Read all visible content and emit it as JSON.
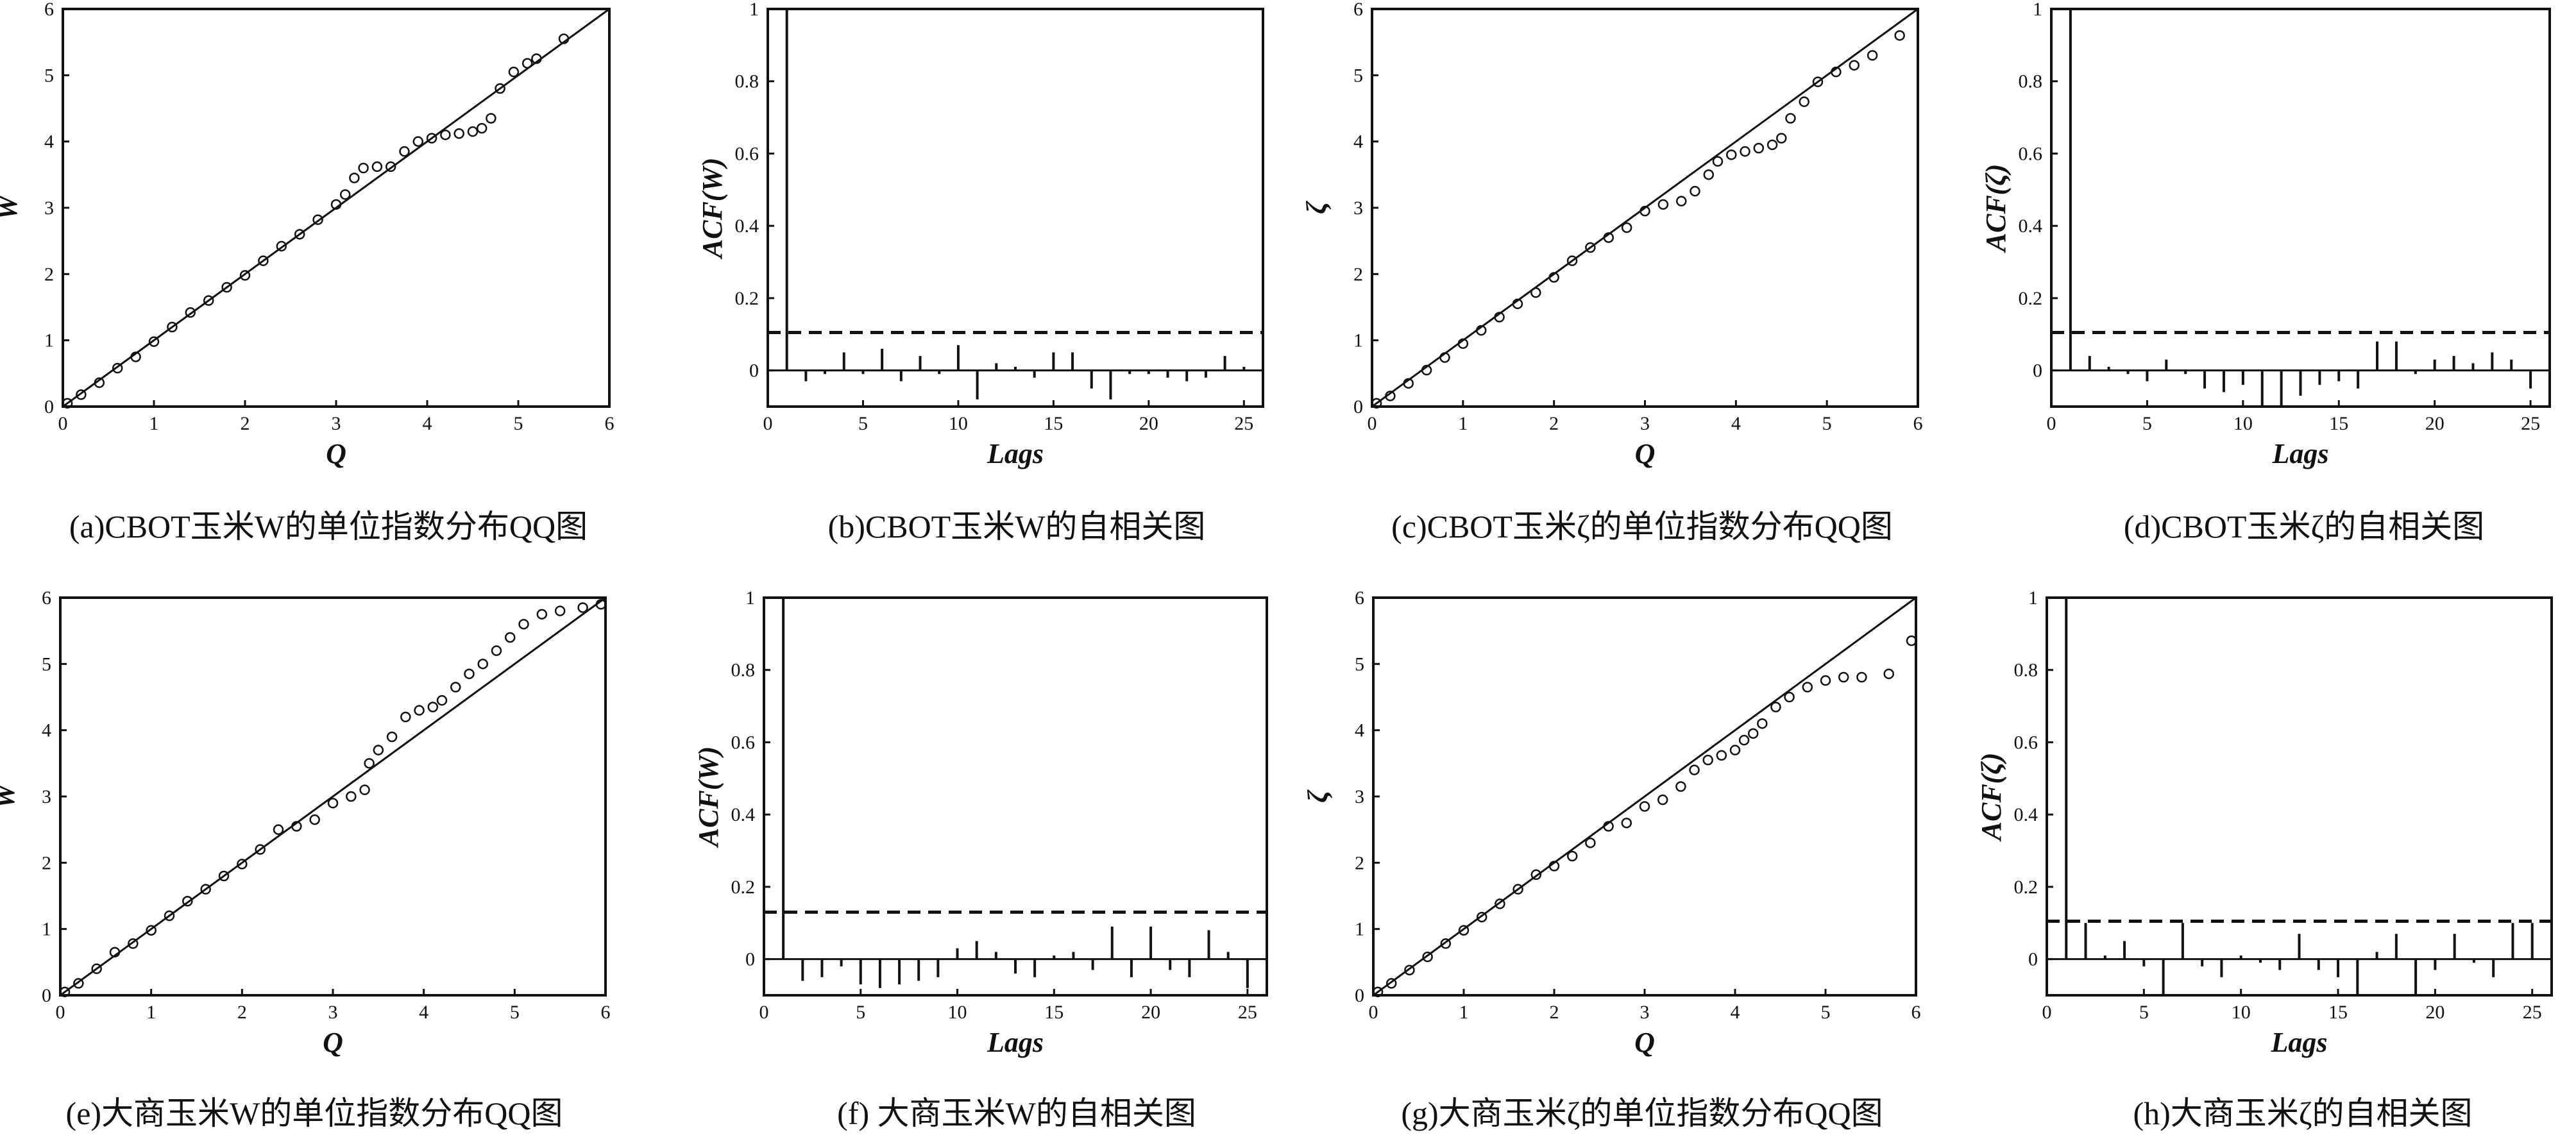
{
  "chart_data": [
    {
      "id": "a",
      "type": "scatter",
      "subtype": "qq",
      "caption": "(a)CBOT玉米W的单位指数分布QQ图",
      "xlabel": "Q",
      "ylabel": "W",
      "xlim": [
        0,
        6
      ],
      "ylim": [
        0,
        6
      ],
      "xticks": [
        "0",
        "1",
        "2",
        "3",
        "4",
        "5",
        "6"
      ],
      "yticks": [
        "0",
        "1",
        "2",
        "3",
        "4",
        "5",
        "6"
      ],
      "reference_line": [
        [
          0,
          0
        ],
        [
          6,
          6
        ]
      ],
      "points": [
        [
          0.05,
          0.05
        ],
        [
          0.2,
          0.18
        ],
        [
          0.4,
          0.36
        ],
        [
          0.6,
          0.58
        ],
        [
          0.8,
          0.75
        ],
        [
          1.0,
          0.98
        ],
        [
          1.2,
          1.2
        ],
        [
          1.4,
          1.42
        ],
        [
          1.6,
          1.6
        ],
        [
          1.8,
          1.8
        ],
        [
          2.0,
          1.98
        ],
        [
          2.2,
          2.2
        ],
        [
          2.4,
          2.42
        ],
        [
          2.6,
          2.6
        ],
        [
          2.8,
          2.82
        ],
        [
          3.0,
          3.05
        ],
        [
          3.1,
          3.2
        ],
        [
          3.2,
          3.45
        ],
        [
          3.3,
          3.6
        ],
        [
          3.45,
          3.62
        ],
        [
          3.6,
          3.62
        ],
        [
          3.75,
          3.85
        ],
        [
          3.9,
          4.0
        ],
        [
          4.05,
          4.05
        ],
        [
          4.2,
          4.1
        ],
        [
          4.35,
          4.12
        ],
        [
          4.5,
          4.15
        ],
        [
          4.6,
          4.2
        ],
        [
          4.7,
          4.35
        ],
        [
          4.8,
          4.8
        ],
        [
          4.95,
          5.05
        ],
        [
          5.1,
          5.18
        ],
        [
          5.2,
          5.25
        ],
        [
          5.5,
          5.55
        ]
      ]
    },
    {
      "id": "b",
      "type": "bar",
      "subtype": "acf",
      "caption": "(b)CBOT玉米W的自相关图",
      "xlabel": "Lags",
      "ylabel": "ACF(W)",
      "xlim": [
        0,
        26
      ],
      "ylim": [
        -0.1,
        1
      ],
      "xticks": [
        "0",
        "5",
        "10",
        "15",
        "20",
        "25"
      ],
      "yticks": [
        "0",
        "0.2",
        "0.4",
        "0.6",
        "0.8",
        "1"
      ],
      "confidence_band": 0.105,
      "lags": [
        1,
        2,
        3,
        4,
        5,
        6,
        7,
        8,
        9,
        10,
        11,
        12,
        13,
        14,
        15,
        16,
        17,
        18,
        19,
        20,
        21,
        22,
        23,
        24,
        25
      ],
      "values": [
        1.0,
        -0.03,
        -0.01,
        0.05,
        -0.01,
        0.06,
        -0.03,
        0.04,
        -0.01,
        0.07,
        -0.08,
        0.02,
        0.01,
        -0.02,
        0.05,
        0.05,
        -0.05,
        -0.08,
        -0.01,
        -0.01,
        -0.02,
        -0.03,
        -0.02,
        0.04,
        0.01
      ]
    },
    {
      "id": "c",
      "type": "scatter",
      "subtype": "qq",
      "caption": "(c)CBOT玉米ζ的单位指数分布QQ图",
      "xlabel": "Q",
      "ylabel": "ζ",
      "xlim": [
        0,
        6
      ],
      "ylim": [
        0,
        6
      ],
      "xticks": [
        "0",
        "1",
        "2",
        "3",
        "4",
        "5",
        "6"
      ],
      "yticks": [
        "0",
        "1",
        "2",
        "3",
        "4",
        "5",
        "6"
      ],
      "reference_line": [
        [
          0,
          0
        ],
        [
          6,
          6
        ]
      ],
      "points": [
        [
          0.05,
          0.05
        ],
        [
          0.2,
          0.16
        ],
        [
          0.4,
          0.35
        ],
        [
          0.6,
          0.55
        ],
        [
          0.8,
          0.74
        ],
        [
          1.0,
          0.95
        ],
        [
          1.2,
          1.15
        ],
        [
          1.4,
          1.35
        ],
        [
          1.6,
          1.55
        ],
        [
          1.8,
          1.72
        ],
        [
          2.0,
          1.95
        ],
        [
          2.2,
          2.2
        ],
        [
          2.4,
          2.4
        ],
        [
          2.6,
          2.55
        ],
        [
          2.8,
          2.7
        ],
        [
          3.0,
          2.95
        ],
        [
          3.2,
          3.05
        ],
        [
          3.4,
          3.1
        ],
        [
          3.55,
          3.25
        ],
        [
          3.7,
          3.5
        ],
        [
          3.8,
          3.7
        ],
        [
          3.95,
          3.8
        ],
        [
          4.1,
          3.85
        ],
        [
          4.25,
          3.9
        ],
        [
          4.4,
          3.95
        ],
        [
          4.5,
          4.05
        ],
        [
          4.6,
          4.35
        ],
        [
          4.75,
          4.6
        ],
        [
          4.9,
          4.9
        ],
        [
          5.1,
          5.05
        ],
        [
          5.3,
          5.15
        ],
        [
          5.5,
          5.3
        ],
        [
          5.8,
          5.6
        ]
      ]
    },
    {
      "id": "d",
      "type": "bar",
      "subtype": "acf",
      "caption": "(d)CBOT玉米ζ的自相关图",
      "xlabel": "Lags",
      "ylabel": "ACF(ζ)",
      "xlim": [
        0,
        26
      ],
      "ylim": [
        -0.1,
        1
      ],
      "xticks": [
        "0",
        "5",
        "10",
        "15",
        "20",
        "25"
      ],
      "yticks": [
        "0",
        "0.2",
        "0.4",
        "0.6",
        "0.8",
        "1"
      ],
      "confidence_band": 0.105,
      "lags": [
        1,
        2,
        3,
        4,
        5,
        6,
        7,
        8,
        9,
        10,
        11,
        12,
        13,
        14,
        15,
        16,
        17,
        18,
        19,
        20,
        21,
        22,
        23,
        24,
        25
      ],
      "values": [
        1.0,
        0.04,
        0.01,
        -0.01,
        -0.03,
        0.03,
        -0.01,
        -0.05,
        -0.06,
        -0.04,
        -0.1,
        -0.1,
        -0.07,
        -0.04,
        -0.03,
        -0.05,
        0.08,
        0.08,
        -0.01,
        0.03,
        0.04,
        0.02,
        0.05,
        0.03,
        -0.05
      ]
    },
    {
      "id": "e",
      "type": "scatter",
      "subtype": "qq",
      "caption": "(e)大商玉米W的单位指数分布QQ图",
      "xlabel": "Q",
      "ylabel": "W",
      "xlim": [
        0,
        6
      ],
      "ylim": [
        0,
        6
      ],
      "xticks": [
        "0",
        "1",
        "2",
        "3",
        "4",
        "5",
        "6"
      ],
      "yticks": [
        "0",
        "1",
        "2",
        "3",
        "4",
        "5",
        "6"
      ],
      "reference_line": [
        [
          0,
          0
        ],
        [
          6,
          6
        ]
      ],
      "points": [
        [
          0.05,
          0.05
        ],
        [
          0.2,
          0.18
        ],
        [
          0.4,
          0.4
        ],
        [
          0.6,
          0.65
        ],
        [
          0.8,
          0.78
        ],
        [
          1.0,
          0.98
        ],
        [
          1.2,
          1.2
        ],
        [
          1.4,
          1.42
        ],
        [
          1.6,
          1.6
        ],
        [
          1.8,
          1.8
        ],
        [
          2.0,
          1.98
        ],
        [
          2.2,
          2.2
        ],
        [
          2.4,
          2.5
        ],
        [
          2.6,
          2.55
        ],
        [
          2.8,
          2.65
        ],
        [
          3.0,
          2.9
        ],
        [
          3.2,
          3.0
        ],
        [
          3.35,
          3.1
        ],
        [
          3.4,
          3.5
        ],
        [
          3.5,
          3.7
        ],
        [
          3.65,
          3.9
        ],
        [
          3.8,
          4.2
        ],
        [
          3.95,
          4.3
        ],
        [
          4.1,
          4.35
        ],
        [
          4.2,
          4.45
        ],
        [
          4.35,
          4.65
        ],
        [
          4.5,
          4.85
        ],
        [
          4.65,
          5.0
        ],
        [
          4.8,
          5.2
        ],
        [
          4.95,
          5.4
        ],
        [
          5.1,
          5.6
        ],
        [
          5.3,
          5.75
        ],
        [
          5.5,
          5.8
        ],
        [
          5.75,
          5.85
        ],
        [
          5.95,
          5.9
        ]
      ]
    },
    {
      "id": "f",
      "type": "bar",
      "subtype": "acf",
      "caption": "(f)  大商玉米W的自相关图",
      "xlabel": "Lags",
      "ylabel": "ACF(W)",
      "xlim": [
        0,
        26
      ],
      "ylim": [
        -0.1,
        1
      ],
      "xticks": [
        "0",
        "5",
        "10",
        "15",
        "20",
        "25"
      ],
      "yticks": [
        "0",
        "0.2",
        "0.4",
        "0.6",
        "0.8",
        "1"
      ],
      "confidence_band": 0.13,
      "lags": [
        1,
        2,
        3,
        4,
        5,
        6,
        7,
        8,
        9,
        10,
        11,
        12,
        13,
        14,
        15,
        16,
        17,
        18,
        19,
        20,
        21,
        22,
        23,
        24,
        25
      ],
      "values": [
        1.0,
        -0.06,
        -0.05,
        -0.02,
        -0.07,
        -0.08,
        -0.07,
        -0.06,
        -0.05,
        0.03,
        0.05,
        0.02,
        -0.04,
        -0.05,
        0.01,
        0.02,
        -0.03,
        0.09,
        -0.05,
        0.09,
        -0.03,
        -0.05,
        0.08,
        0.02,
        -0.08
      ]
    },
    {
      "id": "g",
      "type": "scatter",
      "subtype": "qq",
      "caption": "(g)大商玉米ζ的单位指数分布QQ图",
      "xlabel": "Q",
      "ylabel": "ζ",
      "xlim": [
        0,
        6
      ],
      "ylim": [
        0,
        6
      ],
      "xticks": [
        "0",
        "1",
        "2",
        "3",
        "4",
        "5",
        "6"
      ],
      "yticks": [
        "0",
        "1",
        "2",
        "3",
        "4",
        "5",
        "6"
      ],
      "reference_line": [
        [
          0,
          0
        ],
        [
          6,
          6
        ]
      ],
      "points": [
        [
          0.05,
          0.05
        ],
        [
          0.2,
          0.18
        ],
        [
          0.4,
          0.38
        ],
        [
          0.6,
          0.58
        ],
        [
          0.8,
          0.78
        ],
        [
          1.0,
          0.98
        ],
        [
          1.2,
          1.18
        ],
        [
          1.4,
          1.38
        ],
        [
          1.6,
          1.6
        ],
        [
          1.8,
          1.82
        ],
        [
          2.0,
          1.95
        ],
        [
          2.2,
          2.1
        ],
        [
          2.4,
          2.3
        ],
        [
          2.6,
          2.55
        ],
        [
          2.8,
          2.6
        ],
        [
          3.0,
          2.85
        ],
        [
          3.2,
          2.95
        ],
        [
          3.4,
          3.15
        ],
        [
          3.55,
          3.4
        ],
        [
          3.7,
          3.55
        ],
        [
          3.85,
          3.62
        ],
        [
          4.0,
          3.7
        ],
        [
          4.1,
          3.85
        ],
        [
          4.2,
          3.95
        ],
        [
          4.3,
          4.1
        ],
        [
          4.45,
          4.35
        ],
        [
          4.6,
          4.5
        ],
        [
          4.8,
          4.65
        ],
        [
          5.0,
          4.75
        ],
        [
          5.2,
          4.8
        ],
        [
          5.4,
          4.8
        ],
        [
          5.7,
          4.85
        ],
        [
          5.95,
          5.35
        ]
      ]
    },
    {
      "id": "h",
      "type": "bar",
      "subtype": "acf",
      "caption": "(h)大商玉米ζ的自相关图",
      "xlabel": "Lags",
      "ylabel": "ACF(ζ)",
      "xlim": [
        0,
        26
      ],
      "ylim": [
        -0.1,
        1
      ],
      "xticks": [
        "0",
        "5",
        "10",
        "15",
        "20",
        "25"
      ],
      "yticks": [
        "0",
        "0.2",
        "0.4",
        "0.6",
        "0.8",
        "1"
      ],
      "confidence_band": 0.105,
      "lags": [
        1,
        2,
        3,
        4,
        5,
        6,
        7,
        8,
        9,
        10,
        11,
        12,
        13,
        14,
        15,
        16,
        17,
        18,
        19,
        20,
        21,
        22,
        23,
        24,
        25
      ],
      "values": [
        1.0,
        0.1,
        0.01,
        0.05,
        -0.02,
        -0.1,
        0.1,
        -0.02,
        -0.05,
        0.01,
        -0.01,
        -0.03,
        0.07,
        -0.03,
        -0.05,
        -0.1,
        0.02,
        0.07,
        -0.1,
        -0.03,
        0.07,
        -0.01,
        -0.05,
        0.1,
        0.1
      ]
    }
  ]
}
